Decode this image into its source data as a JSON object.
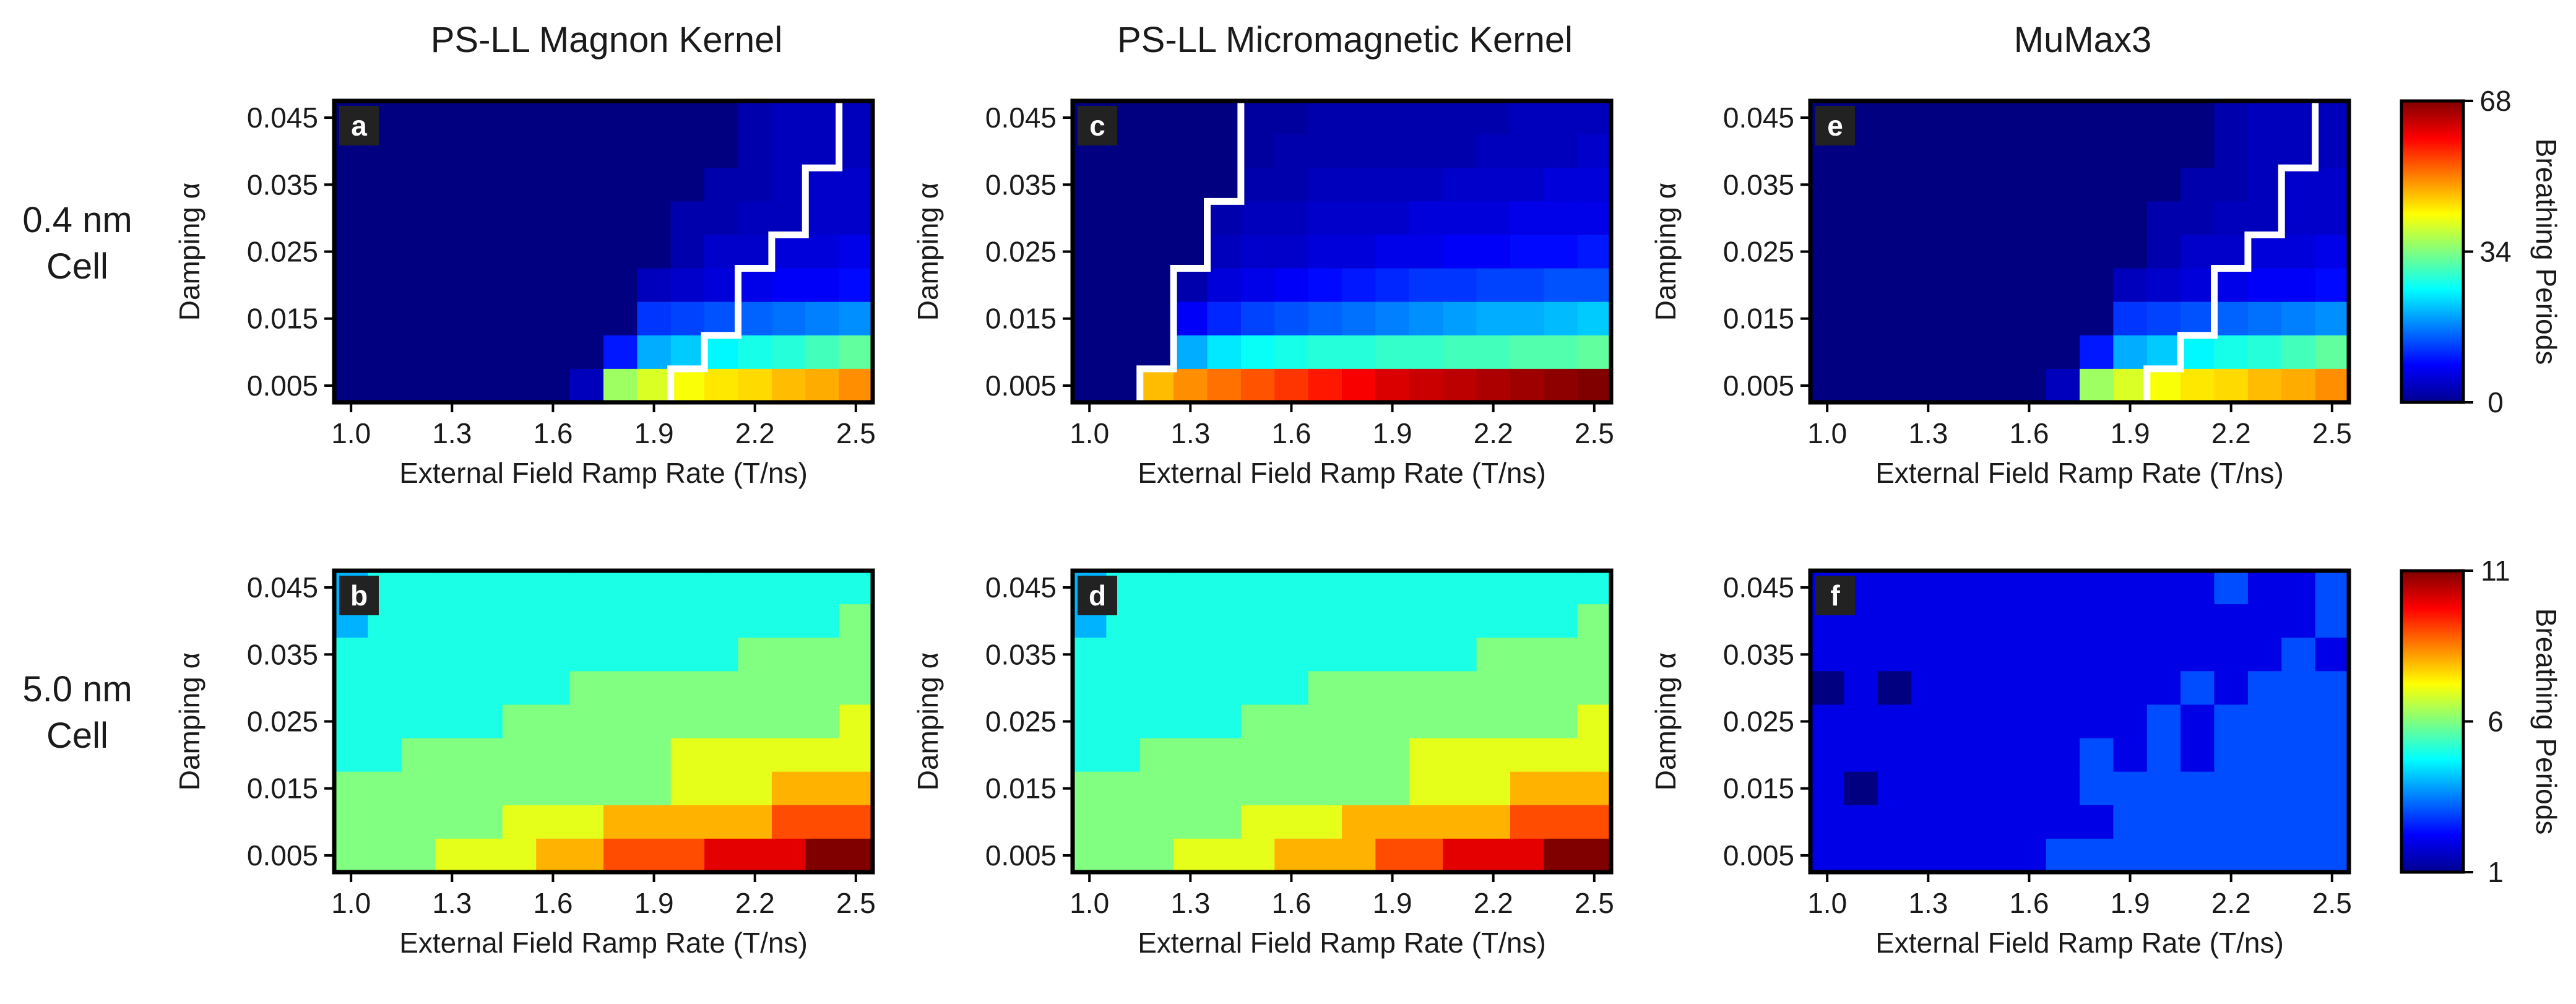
{
  "figure": {
    "column_titles": [
      "PS-LL Magnon Kernel",
      "PS-LL Micromagnetic Kernel",
      "MuMax3"
    ],
    "row_labels": [
      {
        "line1": "0.4 nm",
        "line2": "Cell"
      },
      {
        "line1": "5.0 nm",
        "line2": "Cell"
      }
    ],
    "colorbars": [
      {
        "label": "Breathing Periods",
        "min": 0,
        "mid": 34,
        "max": 68,
        "ticks": [
          "0",
          "34",
          "68"
        ],
        "colormap": "jet"
      },
      {
        "label": "Breathing Periods",
        "min": 1,
        "mid": 6,
        "max": 11,
        "ticks": [
          "1",
          "6",
          "11"
        ],
        "colormap": "jet"
      }
    ]
  },
  "chart_data": [
    {
      "type": "heatmap",
      "panel_label": "a",
      "row": 0,
      "col": 0,
      "xlabel": "External Field Ramp Rate (T/ns)",
      "ylabel": "Damping α",
      "xticks": [
        "1.0",
        "1.3",
        "1.6",
        "1.9",
        "2.2",
        "2.5"
      ],
      "yticks": [
        "0.045",
        "0.035",
        "0.025",
        "0.015",
        "0.005"
      ],
      "x": [
        1.0,
        1.1,
        1.2,
        1.3,
        1.4,
        1.5,
        1.6,
        1.7,
        1.8,
        1.9,
        2.0,
        2.1,
        2.2,
        2.3,
        2.4,
        2.5
      ],
      "y": [
        0.045,
        0.04,
        0.035,
        0.03,
        0.025,
        0.02,
        0.015,
        0.01,
        0.005
      ],
      "vmin": 0,
      "vmax": 68,
      "z": [
        [
          0,
          0,
          0,
          0,
          0,
          0,
          0,
          0,
          0,
          0,
          0,
          0,
          3,
          4,
          4,
          4
        ],
        [
          0,
          0,
          0,
          0,
          0,
          0,
          0,
          0,
          0,
          0,
          0,
          0,
          3,
          4,
          4,
          4
        ],
        [
          0,
          0,
          0,
          0,
          0,
          0,
          0,
          0,
          0,
          0,
          0,
          3,
          3,
          4,
          5,
          5
        ],
        [
          0,
          0,
          0,
          0,
          0,
          0,
          0,
          0,
          0,
          0,
          3,
          3,
          4,
          4,
          5,
          5
        ],
        [
          0,
          0,
          0,
          0,
          0,
          0,
          0,
          0,
          0,
          0,
          3,
          5,
          5,
          6,
          6,
          7
        ],
        [
          0,
          0,
          0,
          0,
          0,
          0,
          0,
          0,
          0,
          4,
          5,
          6,
          7,
          8,
          8,
          9
        ],
        [
          0,
          0,
          0,
          0,
          0,
          0,
          0,
          0,
          0,
          12,
          13,
          14,
          15,
          16,
          17,
          18
        ],
        [
          0,
          0,
          0,
          0,
          0,
          0,
          0,
          0,
          10,
          20,
          22,
          25,
          27,
          28,
          30,
          32
        ],
        [
          0,
          0,
          0,
          0,
          0,
          0,
          0,
          4,
          36,
          40,
          42,
          44,
          45,
          47,
          48,
          50
        ]
      ],
      "boundary": [
        15,
        15,
        14,
        14,
        13,
        12,
        12,
        11,
        10
      ]
    },
    {
      "type": "heatmap",
      "panel_label": "c",
      "row": 0,
      "col": 1,
      "xlabel": "External Field Ramp Rate (T/ns)",
      "ylabel": "Damping α",
      "xticks": [
        "1.0",
        "1.3",
        "1.6",
        "1.9",
        "2.2",
        "2.5"
      ],
      "yticks": [
        "0.045",
        "0.035",
        "0.025",
        "0.015",
        "0.005"
      ],
      "x": [
        1.0,
        1.1,
        1.2,
        1.3,
        1.4,
        1.5,
        1.6,
        1.7,
        1.8,
        1.9,
        2.0,
        2.1,
        2.2,
        2.3,
        2.4,
        2.5
      ],
      "y": [
        0.045,
        0.04,
        0.035,
        0.03,
        0.025,
        0.02,
        0.015,
        0.01,
        0.005
      ],
      "vmin": 0,
      "vmax": 68,
      "z": [
        [
          0,
          0,
          0,
          0,
          0,
          2,
          2,
          3,
          3,
          3,
          3,
          3,
          3,
          4,
          4,
          4
        ],
        [
          0,
          0,
          0,
          0,
          0,
          2,
          3,
          3,
          3,
          3,
          3,
          3,
          4,
          4,
          4,
          5
        ],
        [
          0,
          0,
          0,
          0,
          0,
          3,
          3,
          4,
          4,
          4,
          4,
          5,
          5,
          5,
          6,
          6
        ],
        [
          0,
          0,
          0,
          0,
          3,
          4,
          4,
          5,
          5,
          5,
          6,
          6,
          6,
          7,
          7,
          7
        ],
        [
          0,
          0,
          0,
          0,
          4,
          5,
          5,
          6,
          6,
          7,
          7,
          8,
          8,
          9,
          9,
          10
        ],
        [
          0,
          0,
          0,
          3,
          6,
          7,
          8,
          9,
          10,
          11,
          12,
          12,
          13,
          13,
          14,
          14
        ],
        [
          0,
          0,
          0,
          8,
          11,
          13,
          14,
          15,
          16,
          17,
          18,
          19,
          20,
          20,
          21,
          22
        ],
        [
          0,
          0,
          0,
          20,
          24,
          26,
          27,
          28,
          28,
          29,
          29,
          30,
          30,
          31,
          31,
          32
        ],
        [
          0,
          0,
          47,
          50,
          52,
          54,
          56,
          58,
          60,
          62,
          63,
          64,
          65,
          66,
          67,
          68
        ]
      ],
      "boundary": [
        5,
        5,
        5,
        4,
        4,
        3,
        3,
        3,
        2
      ]
    },
    {
      "type": "heatmap",
      "panel_label": "e",
      "row": 0,
      "col": 2,
      "xlabel": "External Field Ramp Rate (T/ns)",
      "ylabel": "Damping α",
      "xticks": [
        "1.0",
        "1.3",
        "1.6",
        "1.9",
        "2.2",
        "2.5"
      ],
      "yticks": [
        "0.045",
        "0.035",
        "0.025",
        "0.015",
        "0.005"
      ],
      "x": [
        1.0,
        1.1,
        1.2,
        1.3,
        1.4,
        1.5,
        1.6,
        1.7,
        1.8,
        1.9,
        2.0,
        2.1,
        2.2,
        2.3,
        2.4,
        2.5
      ],
      "y": [
        0.045,
        0.04,
        0.035,
        0.03,
        0.025,
        0.02,
        0.015,
        0.01,
        0.005
      ],
      "vmin": 0,
      "vmax": 68,
      "z": [
        [
          0,
          0,
          0,
          0,
          0,
          0,
          0,
          0,
          0,
          0,
          0,
          0,
          3,
          4,
          4,
          4
        ],
        [
          0,
          0,
          0,
          0,
          0,
          0,
          0,
          0,
          0,
          0,
          0,
          0,
          3,
          4,
          4,
          4
        ],
        [
          0,
          0,
          0,
          0,
          0,
          0,
          0,
          0,
          0,
          0,
          0,
          3,
          3,
          4,
          5,
          5
        ],
        [
          0,
          0,
          0,
          0,
          0,
          0,
          0,
          0,
          0,
          0,
          3,
          3,
          4,
          4,
          5,
          5
        ],
        [
          0,
          0,
          0,
          0,
          0,
          0,
          0,
          0,
          0,
          0,
          3,
          5,
          5,
          6,
          6,
          7
        ],
        [
          0,
          0,
          0,
          0,
          0,
          0,
          0,
          0,
          0,
          4,
          5,
          6,
          7,
          8,
          8,
          9
        ],
        [
          0,
          0,
          0,
          0,
          0,
          0,
          0,
          0,
          0,
          12,
          13,
          14,
          15,
          16,
          17,
          18
        ],
        [
          0,
          0,
          0,
          0,
          0,
          0,
          0,
          0,
          10,
          20,
          22,
          25,
          27,
          28,
          30,
          32
        ],
        [
          0,
          0,
          0,
          0,
          0,
          0,
          0,
          4,
          36,
          40,
          42,
          44,
          45,
          47,
          48,
          50
        ]
      ],
      "boundary": [
        15,
        15,
        14,
        14,
        13,
        12,
        12,
        11,
        10
      ]
    },
    {
      "type": "heatmap",
      "panel_label": "b",
      "row": 1,
      "col": 0,
      "xlabel": "External Field Ramp Rate (T/ns)",
      "ylabel": "Damping α",
      "xticks": [
        "1.0",
        "1.3",
        "1.6",
        "1.9",
        "2.2",
        "2.5"
      ],
      "yticks": [
        "0.045",
        "0.035",
        "0.025",
        "0.015",
        "0.005"
      ],
      "x": [
        1.0,
        1.1,
        1.2,
        1.3,
        1.4,
        1.5,
        1.6,
        1.7,
        1.8,
        1.9,
        2.0,
        2.1,
        2.2,
        2.3,
        2.4,
        2.5
      ],
      "y": [
        0.045,
        0.04,
        0.035,
        0.03,
        0.025,
        0.02,
        0.015,
        0.01,
        0.005
      ],
      "vmin": 1,
      "vmax": 11,
      "z": [
        [
          4,
          5,
          5,
          5,
          5,
          5,
          5,
          5,
          5,
          5,
          5,
          5,
          5,
          5,
          5,
          5
        ],
        [
          4,
          5,
          5,
          5,
          5,
          5,
          5,
          5,
          5,
          5,
          5,
          5,
          5,
          5,
          5,
          6
        ],
        [
          5,
          5,
          5,
          5,
          5,
          5,
          5,
          5,
          5,
          5,
          5,
          5,
          6,
          6,
          6,
          6
        ],
        [
          5,
          5,
          5,
          5,
          5,
          5,
          5,
          6,
          6,
          6,
          6,
          6,
          6,
          6,
          6,
          6
        ],
        [
          5,
          5,
          5,
          5,
          5,
          6,
          6,
          6,
          6,
          6,
          6,
          6,
          6,
          6,
          6,
          7
        ],
        [
          5,
          5,
          6,
          6,
          6,
          6,
          6,
          6,
          6,
          6,
          7,
          7,
          7,
          7,
          7,
          7
        ],
        [
          6,
          6,
          6,
          6,
          6,
          6,
          6,
          6,
          6,
          6,
          7,
          7,
          7,
          8,
          8,
          8
        ],
        [
          6,
          6,
          6,
          6,
          6,
          7,
          7,
          7,
          8,
          8,
          8,
          8,
          8,
          9,
          9,
          9
        ],
        [
          6,
          6,
          6,
          7,
          7,
          7,
          8,
          8,
          9,
          9,
          9,
          10,
          10,
          10,
          11,
          11.3
        ]
      ]
    },
    {
      "type": "heatmap",
      "panel_label": "d",
      "row": 1,
      "col": 1,
      "xlabel": "External Field Ramp Rate (T/ns)",
      "ylabel": "Damping α",
      "xticks": [
        "1.0",
        "1.3",
        "1.6",
        "1.9",
        "2.2",
        "2.5"
      ],
      "yticks": [
        "0.045",
        "0.035",
        "0.025",
        "0.015",
        "0.005"
      ],
      "x": [
        1.0,
        1.1,
        1.2,
        1.3,
        1.4,
        1.5,
        1.6,
        1.7,
        1.8,
        1.9,
        2.0,
        2.1,
        2.2,
        2.3,
        2.4,
        2.5
      ],
      "y": [
        0.045,
        0.04,
        0.035,
        0.03,
        0.025,
        0.02,
        0.015,
        0.01,
        0.005
      ],
      "vmin": 1,
      "vmax": 11,
      "z": [
        [
          4,
          5,
          5,
          5,
          5,
          5,
          5,
          5,
          5,
          5,
          5,
          5,
          5,
          5,
          5,
          5
        ],
        [
          4,
          5,
          5,
          5,
          5,
          5,
          5,
          5,
          5,
          5,
          5,
          5,
          5,
          5,
          5,
          6
        ],
        [
          5,
          5,
          5,
          5,
          5,
          5,
          5,
          5,
          5,
          5,
          5,
          5,
          6,
          6,
          6,
          6
        ],
        [
          5,
          5,
          5,
          5,
          5,
          5,
          5,
          6,
          6,
          6,
          6,
          6,
          6,
          6,
          6,
          6
        ],
        [
          5,
          5,
          5,
          5,
          5,
          6,
          6,
          6,
          6,
          6,
          6,
          6,
          6,
          6,
          6,
          7
        ],
        [
          5,
          5,
          6,
          6,
          6,
          6,
          6,
          6,
          6,
          6,
          7,
          7,
          7,
          7,
          7,
          7
        ],
        [
          6,
          6,
          6,
          6,
          6,
          6,
          6,
          6,
          6,
          6,
          7,
          7,
          7,
          8,
          8,
          8
        ],
        [
          6,
          6,
          6,
          6,
          6,
          7,
          7,
          7,
          8,
          8,
          8,
          8,
          8,
          9,
          9,
          9
        ],
        [
          6,
          6,
          6,
          7,
          7,
          7,
          8,
          8,
          8,
          9,
          9,
          10,
          10,
          10,
          11,
          11
        ]
      ]
    },
    {
      "type": "heatmap",
      "panel_label": "f",
      "row": 1,
      "col": 2,
      "xlabel": "External Field Ramp Rate (T/ns)",
      "ylabel": "Damping α",
      "xticks": [
        "1.0",
        "1.3",
        "1.6",
        "1.9",
        "2.2",
        "2.5"
      ],
      "yticks": [
        "0.045",
        "0.035",
        "0.025",
        "0.015",
        "0.005"
      ],
      "x": [
        1.0,
        1.1,
        1.2,
        1.3,
        1.4,
        1.5,
        1.6,
        1.7,
        1.8,
        1.9,
        2.0,
        2.1,
        2.2,
        2.3,
        2.4,
        2.5
      ],
      "y": [
        0.045,
        0.04,
        0.035,
        0.03,
        0.025,
        0.02,
        0.015,
        0.01,
        0.005
      ],
      "vmin": 1,
      "vmax": 11,
      "z": [
        [
          2,
          2,
          2,
          2,
          2,
          2,
          2,
          2,
          2,
          2,
          2,
          2,
          3,
          2,
          2,
          3
        ],
        [
          2,
          2,
          2,
          2,
          2,
          2,
          2,
          2,
          2,
          2,
          2,
          2,
          2,
          2,
          2,
          3
        ],
        [
          2,
          2,
          2,
          2,
          2,
          2,
          2,
          2,
          2,
          2,
          2,
          2,
          2,
          2,
          3,
          2
        ],
        [
          1,
          2,
          1,
          2,
          2,
          2,
          2,
          2,
          2,
          2,
          2,
          3,
          2,
          3,
          3,
          3
        ],
        [
          2,
          2,
          2,
          2,
          2,
          2,
          2,
          2,
          2,
          2,
          3,
          2,
          3,
          3,
          3,
          3
        ],
        [
          2,
          2,
          2,
          2,
          2,
          2,
          2,
          2,
          3,
          2,
          3,
          2,
          3,
          3,
          3,
          3
        ],
        [
          2,
          1,
          2,
          2,
          2,
          2,
          2,
          2,
          3,
          3,
          3,
          3,
          3,
          3,
          3,
          3
        ],
        [
          2,
          2,
          2,
          2,
          2,
          2,
          2,
          2,
          2,
          3,
          3,
          3,
          3,
          3,
          3,
          3
        ],
        [
          2,
          2,
          2,
          2,
          2,
          2,
          2,
          3,
          3,
          3,
          3,
          3,
          3,
          3,
          3,
          3
        ]
      ]
    }
  ]
}
